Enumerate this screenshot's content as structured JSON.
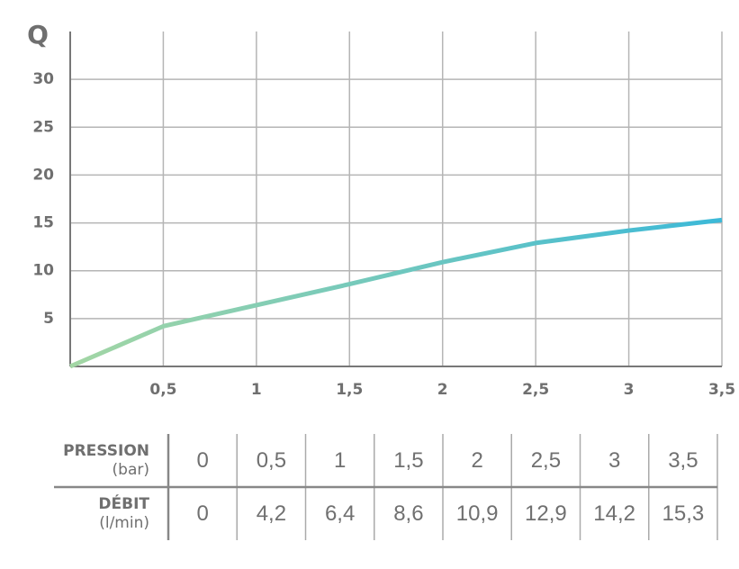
{
  "chart_data": {
    "type": "line",
    "y_label": "Q",
    "x": [
      0,
      0.5,
      1,
      1.5,
      2,
      2.5,
      3,
      3.5
    ],
    "values": [
      0,
      4.2,
      6.4,
      8.6,
      10.9,
      12.9,
      14.2,
      15.3
    ],
    "gradient": [
      "#a3d6a4",
      "#3cb9d8"
    ],
    "xlim": [
      0,
      3.5
    ],
    "xticks": [
      {
        "value": 0.5,
        "label": "0,5"
      },
      1,
      {
        "value": 1.5,
        "label": "1,5"
      },
      2,
      {
        "value": 2.5,
        "label": "2,5"
      },
      3,
      {
        "value": 3.5,
        "label": "3,5"
      }
    ],
    "ylim": [
      0,
      35
    ],
    "yticks": [
      5,
      10,
      15,
      20,
      25,
      30
    ],
    "grid": true
  },
  "table": {
    "rows": [
      {
        "label": "PRESSION",
        "unit": "(bar)",
        "cells": [
          "0",
          "0,5",
          "1",
          "1,5",
          "2",
          "2,5",
          "3",
          "3,5"
        ]
      },
      {
        "label": "DÉBIT",
        "unit": "(l/min)",
        "cells": [
          "0",
          "4,2",
          "6,4",
          "8,6",
          "10,9",
          "12,9",
          "14,2",
          "15,3"
        ]
      }
    ]
  }
}
